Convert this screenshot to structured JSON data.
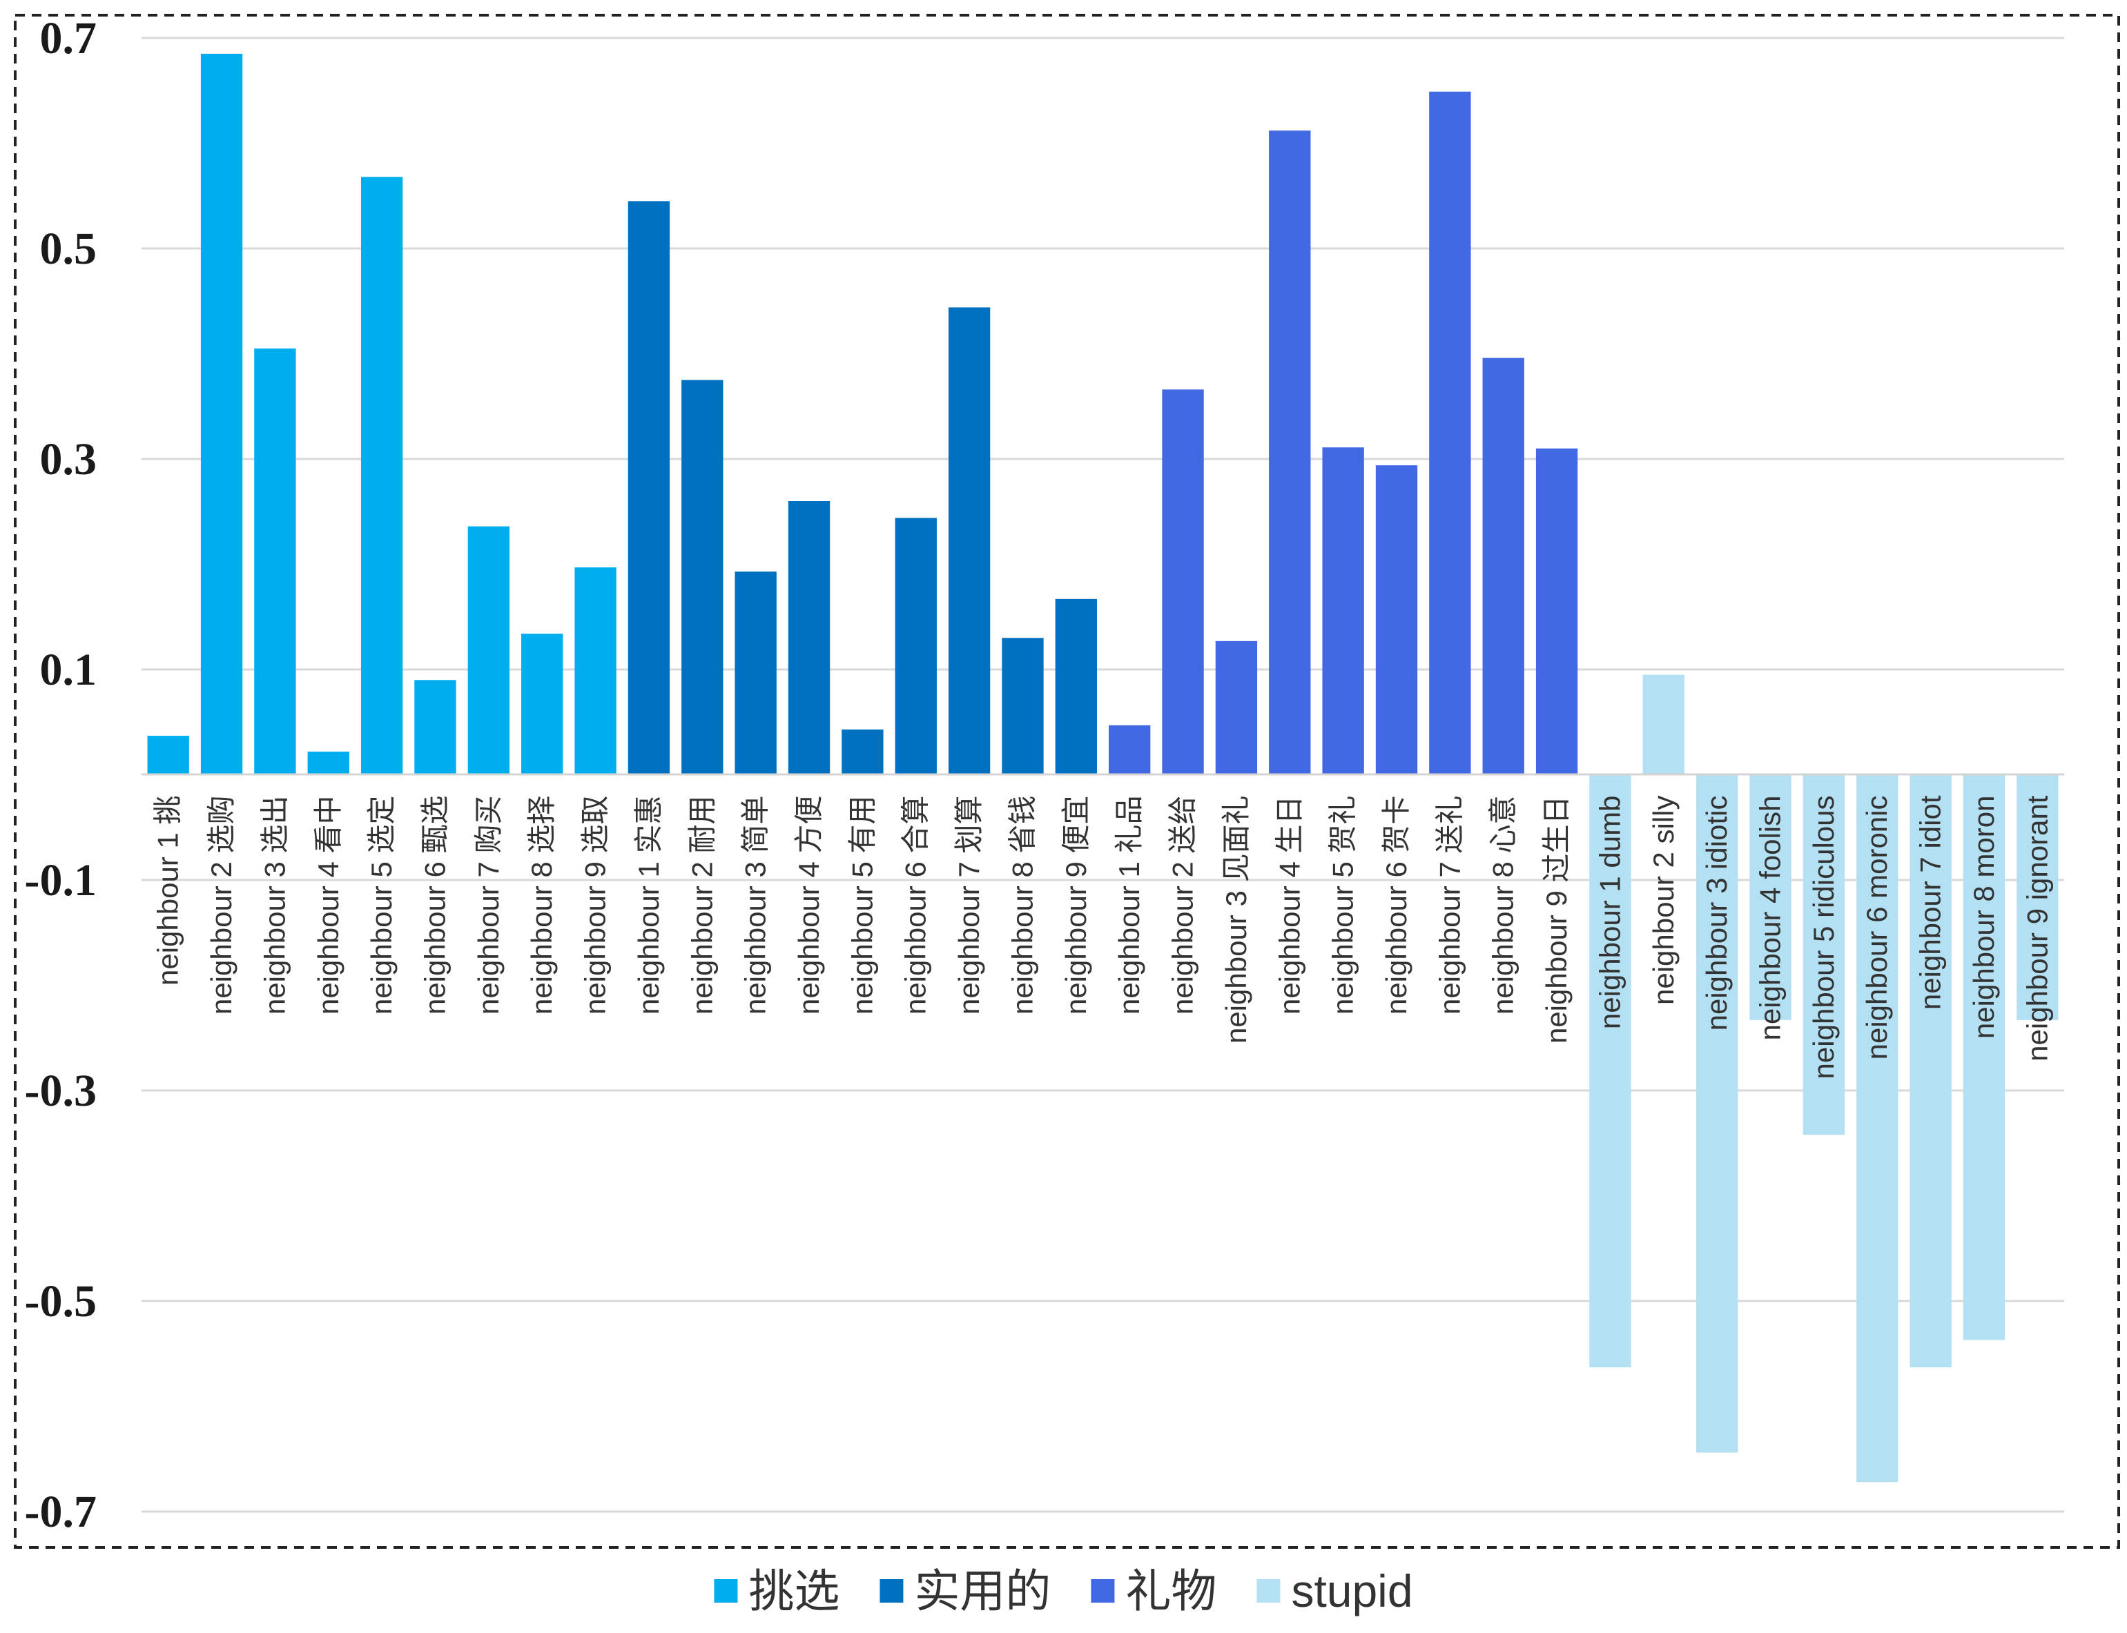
{
  "chart_data": {
    "type": "bar",
    "title": "",
    "xlabel": "",
    "ylabel": "",
    "ylim": [
      -0.7,
      0.7
    ],
    "yticks": [
      "0.7",
      "0.5",
      "0.3",
      "0.1",
      "-0.1",
      "-0.3",
      "-0.5",
      "-0.7"
    ],
    "ytick_values": [
      0.7,
      0.5,
      0.3,
      0.1,
      -0.1,
      -0.3,
      -0.5,
      -0.7
    ],
    "grid": true,
    "legend_position": "bottom",
    "series": [
      {
        "name": "挑选",
        "color": "#00AEEF",
        "categories": [
          "neighbour 1 挑",
          "neighbour 2 选购",
          "neighbour 3 选出",
          "neighbour 4 看中",
          "neighbour 5 选定",
          "neighbour 6 甄选",
          "neighbour 7 购买",
          "neighbour 8 选择",
          "neighbour 9 选取"
        ],
        "values": [
          0.037,
          0.685,
          0.405,
          0.022,
          0.568,
          0.09,
          0.236,
          0.134,
          0.197
        ]
      },
      {
        "name": "实用的",
        "color": "#0070C0",
        "categories": [
          "neighbour 1 实惠",
          "neighbour 2 耐用",
          "neighbour 3 简单",
          "neighbour 4 方便",
          "neighbour 5 有用",
          "neighbour 6 合算",
          "neighbour 7 划算",
          "neighbour 8 省钱",
          "neighbour 9 便宜"
        ],
        "values": [
          0.545,
          0.375,
          0.193,
          0.26,
          0.043,
          0.244,
          0.444,
          0.13,
          0.167
        ]
      },
      {
        "name": "礼物",
        "color": "#4169E1",
        "categories": [
          "neighbour 1 礼品",
          "neighbour 2 送给",
          "neighbour 3 见面礼",
          "neighbour 4 生日",
          "neighbour 5 贺礼",
          "neighbour 6 贺卡",
          "neighbour 7 送礼",
          "neighbour 8 心意",
          "neighbour 9 过生日"
        ],
        "values": [
          0.047,
          0.366,
          0.127,
          0.612,
          0.311,
          0.294,
          0.649,
          0.396,
          0.31
        ]
      },
      {
        "name": "stupid",
        "color": "#B3E0F2",
        "categories": [
          "neighbour 1 dumb",
          "neighbour 2 silly",
          "neighbour 3 idiotic",
          "neighbour 4 foolish",
          "neighbour 5 ridiculous",
          "neighbour 6 moronic",
          "neighbour 7 idiot",
          "neighbour 8 moron",
          "neighbour 9 ignorant"
        ],
        "values": [
          -0.563,
          0.095,
          -0.644,
          -0.233,
          -0.342,
          -0.672,
          -0.563,
          -0.537,
          -0.233
        ]
      }
    ]
  }
}
